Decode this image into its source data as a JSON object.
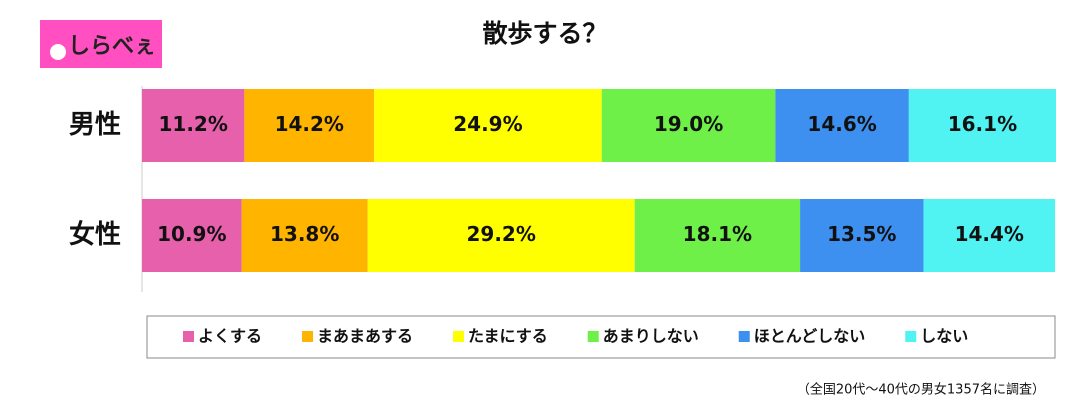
{
  "logo": "しらべぇ",
  "chart_data": {
    "type": "stacked-bar-horizontal",
    "title": "散歩する？",
    "categories": [
      "男性",
      "女性"
    ],
    "xlim": [
      0,
      100
    ],
    "series": [
      {
        "name": "よくする",
        "color": "#e660ac",
        "values": [
          11.2,
          10.9
        ],
        "value_labels": [
          "11.2%",
          "10.9%"
        ]
      },
      {
        "name": "まあまあする",
        "color": "#ffb400",
        "values": [
          14.2,
          13.8
        ],
        "value_labels": [
          "14.2%",
          "13.8%"
        ]
      },
      {
        "name": "たまにする",
        "color": "#ffff00",
        "values": [
          24.9,
          29.2
        ],
        "value_labels": [
          "24.9%",
          "29.2%"
        ]
      },
      {
        "name": "あまりしない",
        "color": "#6ef048",
        "values": [
          19.0,
          18.1
        ],
        "value_labels": [
          "19.0%",
          "18.1%"
        ]
      },
      {
        "name": "ほとんどしない",
        "color": "#3d8ff0",
        "values": [
          14.6,
          13.5
        ],
        "value_labels": [
          "14.6%",
          "13.5%"
        ]
      },
      {
        "name": "しない",
        "color": "#50f2f2",
        "values": [
          16.1,
          14.4
        ],
        "value_labels": [
          "16.1%",
          "14.4%"
        ]
      }
    ],
    "note": "（全国20代～40代の男女1357名に調査）"
  }
}
